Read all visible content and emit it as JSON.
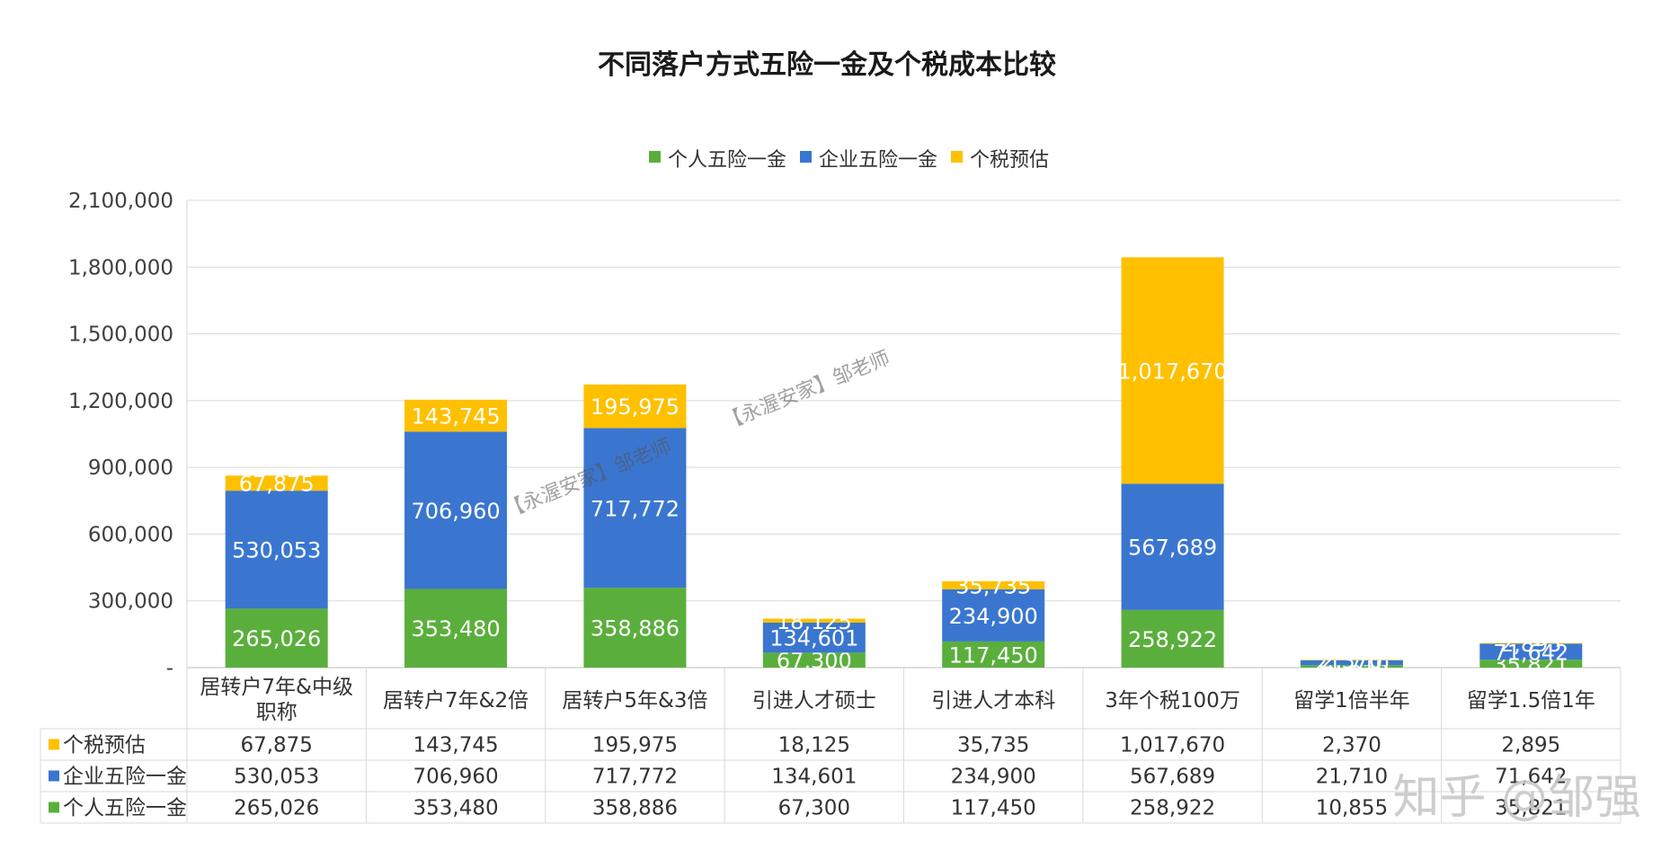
{
  "chart_data": {
    "type": "bar",
    "stacked": true,
    "title": "不同落户方式五险一金及个税成本比较",
    "categories": [
      "居转户7年&中级职称",
      "居转户7年&2倍",
      "居转户5年&3倍",
      "引进人才硕士",
      "引进人才本科",
      "3年个税100万",
      "留学1倍半年",
      "留学1.5倍1年"
    ],
    "series": [
      {
        "name": "个人五险一金",
        "color": "#5aaf3c",
        "values": [
          265026,
          353480,
          358886,
          67300,
          117450,
          258922,
          10855,
          35821
        ]
      },
      {
        "name": "企业五险一金",
        "color": "#3a76d0",
        "values": [
          530053,
          706960,
          717772,
          134601,
          234900,
          567689,
          21710,
          71642
        ]
      },
      {
        "name": "个税预估",
        "color": "#ffc000",
        "values": [
          67875,
          143745,
          195975,
          18125,
          35735,
          1017670,
          2370,
          2895
        ]
      }
    ],
    "value_labels": {
      "个人五险一金": [
        "265,026",
        "353,480",
        "358,886",
        "67,300",
        "117,450",
        "258,922",
        "10,855",
        "35,821"
      ],
      "企业五险一金": [
        "530,053",
        "706,960",
        "717,772",
        "134,601",
        "234,900",
        "567,689",
        "21,710",
        "71,642"
      ],
      "个税预估": [
        "67,875",
        "143,745",
        "195,975",
        "18,125",
        "35,735",
        "1,017,670",
        "2,370",
        "2,895"
      ]
    },
    "ylim": [
      0,
      2100000
    ],
    "yticks": [
      0,
      300000,
      600000,
      900000,
      1200000,
      1500000,
      1800000,
      2100000
    ],
    "ytick_labels": [
      "-",
      "300,000",
      "600,000",
      "900,000",
      "1,200,000",
      "1,500,000",
      "1,800,000",
      "2,100,000"
    ],
    "grid": true,
    "legend": "top-center",
    "legend_order": [
      "个人五险一金",
      "企业五险一金",
      "个税预估"
    ],
    "table_order": [
      "个税预估",
      "企业五险一金",
      "个人五险一金"
    ],
    "data_table": true
  },
  "watermarks": [
    "【永渥安家】邹老师",
    "【永渥安家】邹老师"
  ],
  "logo_text": "知乎 @邹强"
}
